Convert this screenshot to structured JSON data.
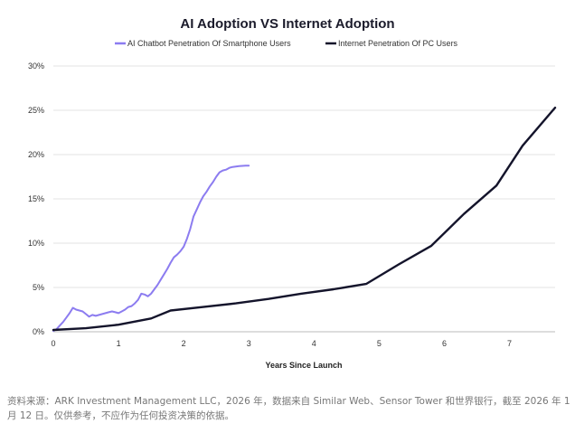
{
  "chart_data": {
    "type": "line",
    "title": "AI Adoption VS Internet Adoption",
    "xlabel": "Years Since Launch",
    "ylabel": "",
    "xlim": [
      0,
      7.7
    ],
    "ylim": [
      0,
      30
    ],
    "x_ticks": [
      0,
      1,
      2,
      3,
      4,
      5,
      6,
      7
    ],
    "y_ticks": [
      0,
      5,
      10,
      15,
      20,
      25,
      30
    ],
    "y_tick_labels": [
      "0%",
      "5%",
      "10%",
      "15%",
      "20%",
      "25%",
      "30%"
    ],
    "grid": "horizontal",
    "legend_position": "top",
    "series": [
      {
        "name": "AI Chatbot Penetration Of Smartphone Users",
        "color": "#8c7cf0",
        "x": [
          0,
          0.05,
          0.1,
          0.15,
          0.2,
          0.25,
          0.3,
          0.35,
          0.4,
          0.45,
          0.5,
          0.55,
          0.6,
          0.65,
          0.7,
          0.75,
          0.8,
          0.85,
          0.9,
          0.95,
          1.0,
          1.05,
          1.1,
          1.15,
          1.2,
          1.25,
          1.3,
          1.35,
          1.4,
          1.45,
          1.5,
          1.55,
          1.6,
          1.65,
          1.7,
          1.75,
          1.8,
          1.85,
          1.9,
          1.95,
          2.0,
          2.05,
          2.1,
          2.15,
          2.2,
          2.25,
          2.3,
          2.35,
          2.4,
          2.45,
          2.5,
          2.55,
          2.6,
          2.65,
          2.7,
          2.75,
          2.8,
          2.85,
          2.9,
          2.95,
          3.0
        ],
        "values": [
          0.1,
          0.3,
          0.7,
          1.1,
          1.6,
          2.1,
          2.7,
          2.5,
          2.4,
          2.3,
          2.0,
          1.7,
          1.9,
          1.8,
          1.9,
          2.0,
          2.1,
          2.2,
          2.3,
          2.2,
          2.1,
          2.3,
          2.5,
          2.8,
          2.9,
          3.2,
          3.6,
          4.3,
          4.2,
          4.0,
          4.3,
          4.8,
          5.3,
          5.9,
          6.5,
          7.1,
          7.8,
          8.4,
          8.7,
          9.1,
          9.6,
          10.5,
          11.6,
          13.0,
          13.8,
          14.6,
          15.3,
          15.8,
          16.4,
          16.9,
          17.5,
          18.0,
          18.2,
          18.3,
          18.5,
          18.6,
          18.65,
          18.7,
          18.72,
          18.74,
          18.75
        ]
      },
      {
        "name": "Internet Penetration Of PC Users",
        "color": "#14142b",
        "x": [
          0,
          0.5,
          1.0,
          1.5,
          1.8,
          2.3,
          2.8,
          3.3,
          3.8,
          4.3,
          4.8,
          5.3,
          5.8,
          6.3,
          6.8,
          7.2,
          7.7
        ],
        "values": [
          0.2,
          0.4,
          0.8,
          1.5,
          2.4,
          2.8,
          3.2,
          3.7,
          4.3,
          4.8,
          5.4,
          7.6,
          9.7,
          13.3,
          16.5,
          21.0,
          25.3
        ]
      }
    ]
  },
  "source_note": "资料来源：ARK Investment Management LLC，2026 年，数据来自 Similar Web、Sensor Tower 和世界银行，截至 2026 年 1 月 12 日。仅供参考，不应作为任何投资决策的依据。"
}
